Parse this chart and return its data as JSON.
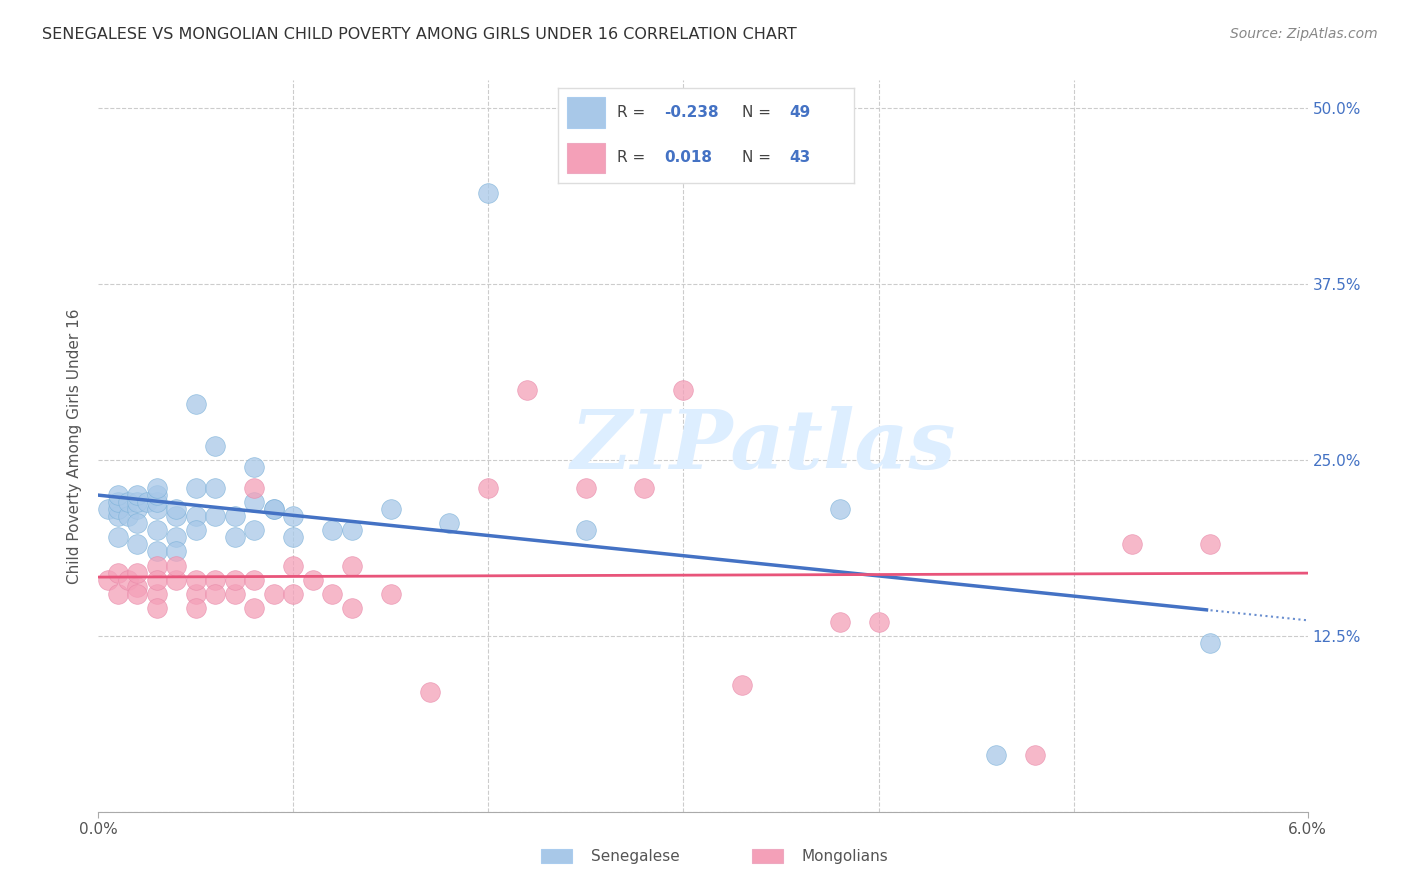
{
  "title": "SENEGALESE VS MONGOLIAN CHILD POVERTY AMONG GIRLS UNDER 16 CORRELATION CHART",
  "source": "Source: ZipAtlas.com",
  "ylabel": "Child Poverty Among Girls Under 16",
  "yticks": [
    0.0,
    0.125,
    0.25,
    0.375,
    0.5
  ],
  "ytick_labels": [
    "",
    "12.5%",
    "25.0%",
    "37.5%",
    "50.0%"
  ],
  "xtick_labels": [
    "0.0%",
    "6.0%"
  ],
  "xlim": [
    0.0,
    0.062
  ],
  "ylim": [
    0.0,
    0.52
  ],
  "watermark": "ZIPatlas",
  "blue_color": "#a8c8e8",
  "pink_color": "#f4a0b8",
  "blue_line_color": "#4472c4",
  "pink_line_color": "#e8547a",
  "r_sen": -0.238,
  "n_sen": 49,
  "r_mon": 0.018,
  "n_mon": 43,
  "senegalese_x": [
    0.0005,
    0.001,
    0.001,
    0.001,
    0.001,
    0.001,
    0.0015,
    0.0015,
    0.002,
    0.002,
    0.002,
    0.002,
    0.002,
    0.0025,
    0.003,
    0.003,
    0.003,
    0.003,
    0.003,
    0.003,
    0.004,
    0.004,
    0.004,
    0.004,
    0.005,
    0.005,
    0.005,
    0.005,
    0.006,
    0.006,
    0.006,
    0.007,
    0.007,
    0.008,
    0.008,
    0.008,
    0.009,
    0.009,
    0.01,
    0.01,
    0.012,
    0.013,
    0.015,
    0.018,
    0.02,
    0.025,
    0.038,
    0.046,
    0.057
  ],
  "senegalese_y": [
    0.215,
    0.21,
    0.215,
    0.22,
    0.225,
    0.195,
    0.21,
    0.22,
    0.215,
    0.22,
    0.225,
    0.205,
    0.19,
    0.22,
    0.215,
    0.22,
    0.225,
    0.23,
    0.2,
    0.185,
    0.21,
    0.215,
    0.195,
    0.185,
    0.21,
    0.2,
    0.23,
    0.29,
    0.21,
    0.23,
    0.26,
    0.195,
    0.21,
    0.2,
    0.22,
    0.245,
    0.215,
    0.215,
    0.21,
    0.195,
    0.2,
    0.2,
    0.215,
    0.205,
    0.44,
    0.2,
    0.215,
    0.04,
    0.12
  ],
  "mongolian_x": [
    0.0005,
    0.001,
    0.001,
    0.0015,
    0.002,
    0.002,
    0.002,
    0.003,
    0.003,
    0.003,
    0.003,
    0.004,
    0.004,
    0.005,
    0.005,
    0.005,
    0.006,
    0.006,
    0.007,
    0.007,
    0.008,
    0.008,
    0.008,
    0.009,
    0.01,
    0.01,
    0.011,
    0.012,
    0.013,
    0.013,
    0.015,
    0.017,
    0.02,
    0.022,
    0.025,
    0.028,
    0.03,
    0.033,
    0.038,
    0.04,
    0.048,
    0.053,
    0.057
  ],
  "mongolian_y": [
    0.165,
    0.155,
    0.17,
    0.165,
    0.16,
    0.17,
    0.155,
    0.155,
    0.175,
    0.165,
    0.145,
    0.165,
    0.175,
    0.155,
    0.165,
    0.145,
    0.165,
    0.155,
    0.155,
    0.165,
    0.145,
    0.165,
    0.23,
    0.155,
    0.175,
    0.155,
    0.165,
    0.155,
    0.145,
    0.175,
    0.155,
    0.085,
    0.23,
    0.3,
    0.23,
    0.23,
    0.3,
    0.09,
    0.135,
    0.135,
    0.04,
    0.19,
    0.19
  ]
}
